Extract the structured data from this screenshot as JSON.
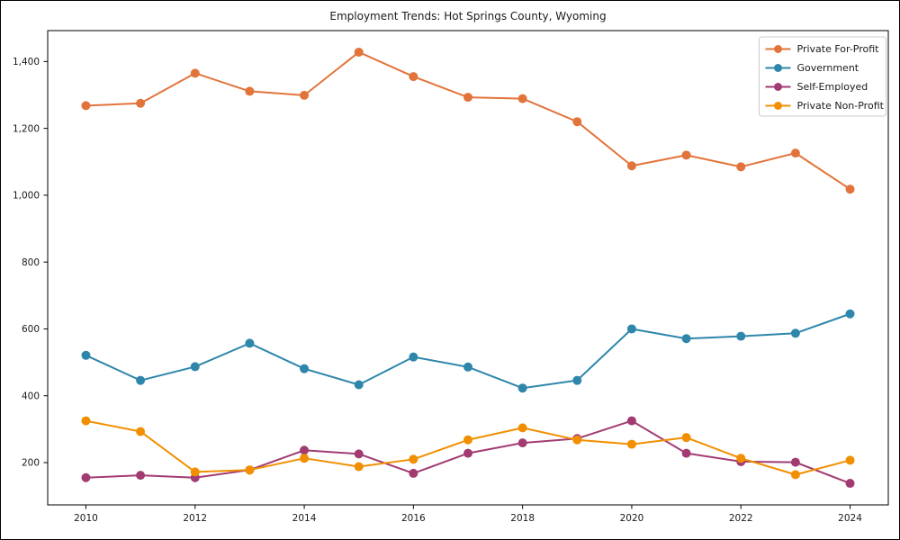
{
  "chart_data": {
    "type": "line",
    "title": "Employment Trends: Hot Springs County, Wyoming",
    "x": [
      2010,
      2011,
      2012,
      2013,
      2014,
      2015,
      2016,
      2017,
      2018,
      2019,
      2020,
      2021,
      2022,
      2023,
      2024
    ],
    "series": [
      {
        "name": "Private For-Profit",
        "color": "#e2743b",
        "values": [
          1268,
          1275,
          1365,
          1311,
          1299,
          1428,
          1355,
          1293,
          1289,
          1220,
          1088,
          1120,
          1085,
          1126,
          1018
        ]
      },
      {
        "name": "Government",
        "color": "#2e86ab",
        "values": [
          521,
          446,
          487,
          557,
          481,
          433,
          516,
          486,
          423,
          446,
          600,
          571,
          578,
          587,
          645
        ]
      },
      {
        "name": "Self-Employed",
        "color": "#a23b72",
        "values": [
          155,
          162,
          155,
          178,
          237,
          226,
          168,
          228,
          259,
          272,
          325,
          228,
          203,
          201,
          138
        ]
      },
      {
        "name": "Private Non-Profit",
        "color": "#f18f01",
        "values": [
          325,
          293,
          172,
          178,
          213,
          188,
          210,
          268,
          304,
          268,
          255,
          275,
          213,
          164,
          207
        ]
      }
    ],
    "xticks": [
      2010,
      2012,
      2014,
      2016,
      2018,
      2020,
      2022,
      2024
    ],
    "yticks": [
      200,
      400,
      600,
      800,
      1000,
      1200,
      1400
    ],
    "xlim": [
      2009.3,
      2024.7
    ],
    "ylim": [
      73.5,
      1492.5
    ],
    "xlabel": "",
    "ylabel": "",
    "grid": false,
    "legend_position": "upper right",
    "marker": "circle",
    "background_color": "#ffffff",
    "spine_color": "#000000"
  }
}
